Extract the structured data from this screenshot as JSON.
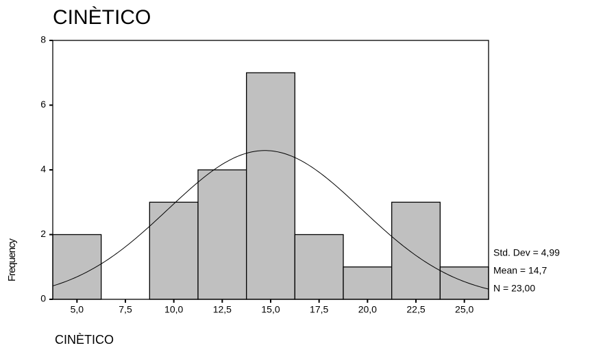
{
  "chart_data": {
    "type": "histogram",
    "title": "CINÈTICO",
    "x_label": "CINÈTICO",
    "y_label": "Frequency",
    "bins": [
      3.75,
      6.25,
      8.75,
      11.25,
      13.75,
      16.25,
      18.75,
      21.25,
      23.75,
      26.25
    ],
    "values": [
      2,
      0,
      3,
      4,
      7,
      2,
      1,
      3,
      1
    ],
    "color": "#c0c0c0",
    "xlim": [
      3.75,
      26.25
    ],
    "xticks": [
      {
        "value": 5,
        "label": "5,0"
      },
      {
        "value": 7.5,
        "label": "7,5"
      },
      {
        "value": 10,
        "label": "10,0"
      },
      {
        "value": 12.5,
        "label": "12,5"
      },
      {
        "value": 15,
        "label": "15,0"
      },
      {
        "value": 17.5,
        "label": "17,5"
      },
      {
        "value": 20,
        "label": "20,0"
      },
      {
        "value": 22.5,
        "label": "22,5"
      },
      {
        "value": 25,
        "label": "25,0"
      }
    ],
    "ylim": [
      0,
      8
    ],
    "yticks": [
      0,
      2,
      4,
      6,
      8
    ],
    "stats": [
      {
        "value": 4.99,
        "label": "Std. Dev = 4,99"
      },
      {
        "value": 14.7,
        "label": "Mean = 14,7"
      },
      {
        "value": 23,
        "label": "N = 23,00"
      }
    ]
  }
}
